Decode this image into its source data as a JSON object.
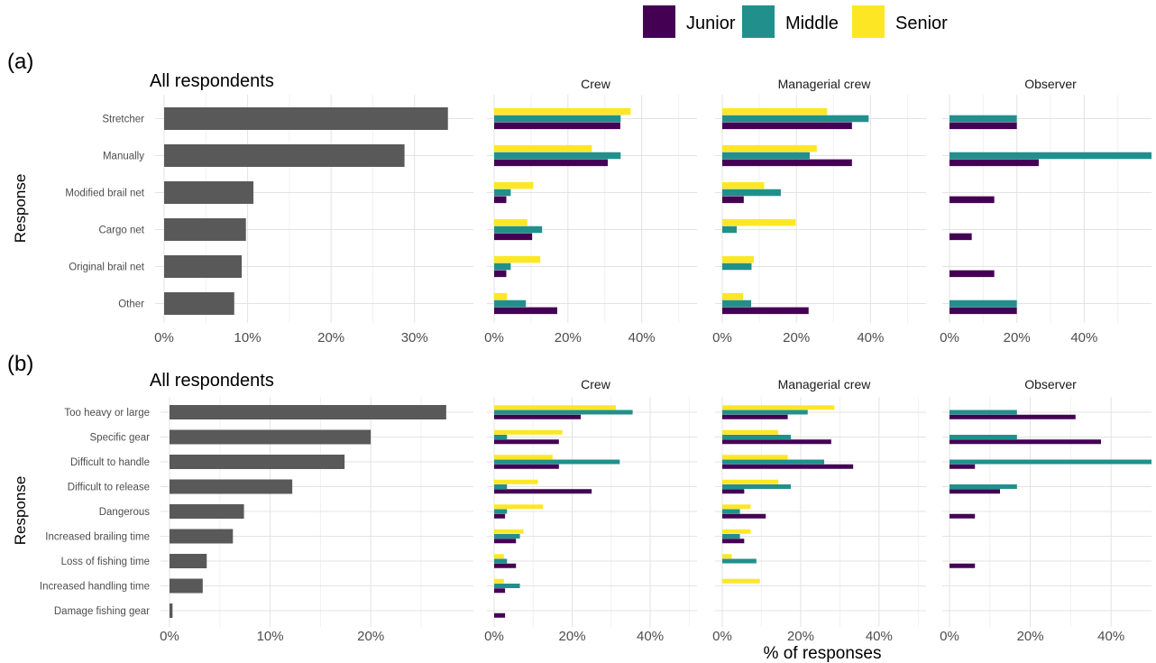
{
  "legend": {
    "items": [
      {
        "label": "Junior",
        "color": "#440154"
      },
      {
        "label": "Middle",
        "color": "#21908C"
      },
      {
        "label": "Senior",
        "color": "#FDE725"
      }
    ],
    "placement": "top"
  },
  "figure": {
    "y_label": "Response",
    "x_label": "% of responses"
  },
  "colors": {
    "overall_bar": "#595959",
    "grid_major": "#e3e3e3",
    "grid_minor": "#f1f1f1",
    "text_dark": "#4d4d4d"
  },
  "chart_data": [
    {
      "panel_tag": "(a)",
      "type": "bar",
      "orientation": "horizontal",
      "title": "All respondents",
      "ylabel": "Response",
      "categories": [
        "Stretcher",
        "Manually",
        "Modified brail net",
        "Cargo net",
        "Original brail net",
        "Other"
      ],
      "overall": {
        "values": [
          34.0,
          28.8,
          10.7,
          9.8,
          9.3,
          8.4
        ],
        "xlim": [
          0,
          35
        ],
        "ticks": [
          "0%",
          "10%",
          "20%",
          "30%"
        ]
      },
      "facets": [
        {
          "title": "Crew",
          "xlim": [
            0,
            55
          ],
          "ticks": [
            "0%",
            "20%",
            "40%"
          ],
          "series": [
            {
              "name": "Junior",
              "values": [
                34.2,
                30.8,
                3.3,
                10.3,
                3.3,
                17.1
              ]
            },
            {
              "name": "Middle",
              "values": [
                34.3,
                34.3,
                4.5,
                13.0,
                4.5,
                8.6
              ]
            },
            {
              "name": "Senior",
              "values": [
                37.0,
                26.5,
                10.6,
                9.0,
                12.5,
                3.5
              ]
            }
          ]
        },
        {
          "title": "Managerial crew",
          "xlim": [
            0,
            55
          ],
          "ticks": [
            "0%",
            "20%",
            "40%"
          ],
          "series": [
            {
              "name": "Junior",
              "values": [
                35.0,
                35.0,
                5.8,
                0,
                0,
                23.3
              ]
            },
            {
              "name": "Middle",
              "values": [
                39.5,
                23.6,
                15.8,
                3.9,
                7.9,
                7.8
              ]
            },
            {
              "name": "Senior",
              "values": [
                28.3,
                25.5,
                11.3,
                19.8,
                8.5,
                5.6
              ]
            }
          ]
        },
        {
          "title": "Observer",
          "xlim": [
            0,
            60
          ],
          "ticks": [
            "0%",
            "20%",
            "40%"
          ],
          "series": [
            {
              "name": "Junior",
              "values": [
                20.0,
                26.5,
                13.3,
                6.6,
                13.3,
                20.0
              ]
            },
            {
              "name": "Middle",
              "values": [
                20.0,
                60.0,
                0,
                0,
                0,
                20.0
              ]
            },
            {
              "name": "Senior",
              "values": [
                0,
                0,
                0,
                0,
                0,
                0
              ]
            }
          ]
        }
      ]
    },
    {
      "panel_tag": "(b)",
      "type": "bar",
      "orientation": "horizontal",
      "title": "All respondents",
      "ylabel": "Response",
      "xlabel": "% of responses",
      "categories": [
        "Too heavy or large",
        "Specific gear",
        "Difficult to handle",
        "Difficult to release",
        "Dangerous",
        "Increased brailing time",
        "Loss of fishing time",
        "Increased handling time",
        "Damage fishing gear"
      ],
      "overall": {
        "values": [
          27.5,
          20.0,
          17.4,
          12.2,
          7.4,
          6.3,
          3.7,
          3.3,
          0.3
        ],
        "xlim": [
          0,
          28.5
        ],
        "ticks": [
          "0%",
          "10%",
          "20%"
        ]
      },
      "facets": [
        {
          "title": "Crew",
          "xlim": [
            0,
            52
          ],
          "ticks": [
            "0%",
            "20%",
            "40%"
          ],
          "series": [
            {
              "name": "Junior",
              "values": [
                22.2,
                16.6,
                16.6,
                25.0,
                2.8,
                5.6,
                5.6,
                2.8,
                2.8
              ]
            },
            {
              "name": "Middle",
              "values": [
                35.5,
                3.3,
                32.2,
                3.3,
                3.3,
                6.6,
                3.3,
                6.6,
                0
              ]
            },
            {
              "name": "Senior",
              "values": [
                31.2,
                17.5,
                15.0,
                11.2,
                12.5,
                7.5,
                2.5,
                2.5,
                0
              ]
            }
          ]
        },
        {
          "title": "Managerial crew",
          "xlim": [
            0,
            52
          ],
          "ticks": [
            "0%",
            "20%",
            "40%"
          ],
          "series": [
            {
              "name": "Junior",
              "values": [
                16.7,
                27.8,
                33.4,
                5.6,
                11.1,
                5.6,
                0,
                0,
                0
              ]
            },
            {
              "name": "Middle",
              "values": [
                21.8,
                17.5,
                26.0,
                17.5,
                4.5,
                4.5,
                8.7,
                0,
                0
              ]
            },
            {
              "name": "Senior",
              "values": [
                28.6,
                14.3,
                16.7,
                14.3,
                7.2,
                7.2,
                2.4,
                9.6,
                0
              ]
            }
          ]
        },
        {
          "title": "Observer",
          "xlim": [
            0,
            50
          ],
          "ticks": [
            "0%",
            "20%",
            "40%"
          ],
          "series": [
            {
              "name": "Junior",
              "values": [
                31.2,
                37.5,
                6.3,
                12.5,
                6.3,
                0,
                6.3,
                0,
                0
              ]
            },
            {
              "name": "Middle",
              "values": [
                16.7,
                16.7,
                50.0,
                16.7,
                0,
                0,
                0,
                0,
                0
              ]
            },
            {
              "name": "Senior",
              "values": [
                0,
                0,
                0,
                0,
                0,
                0,
                0,
                0,
                0
              ]
            }
          ]
        }
      ]
    }
  ]
}
